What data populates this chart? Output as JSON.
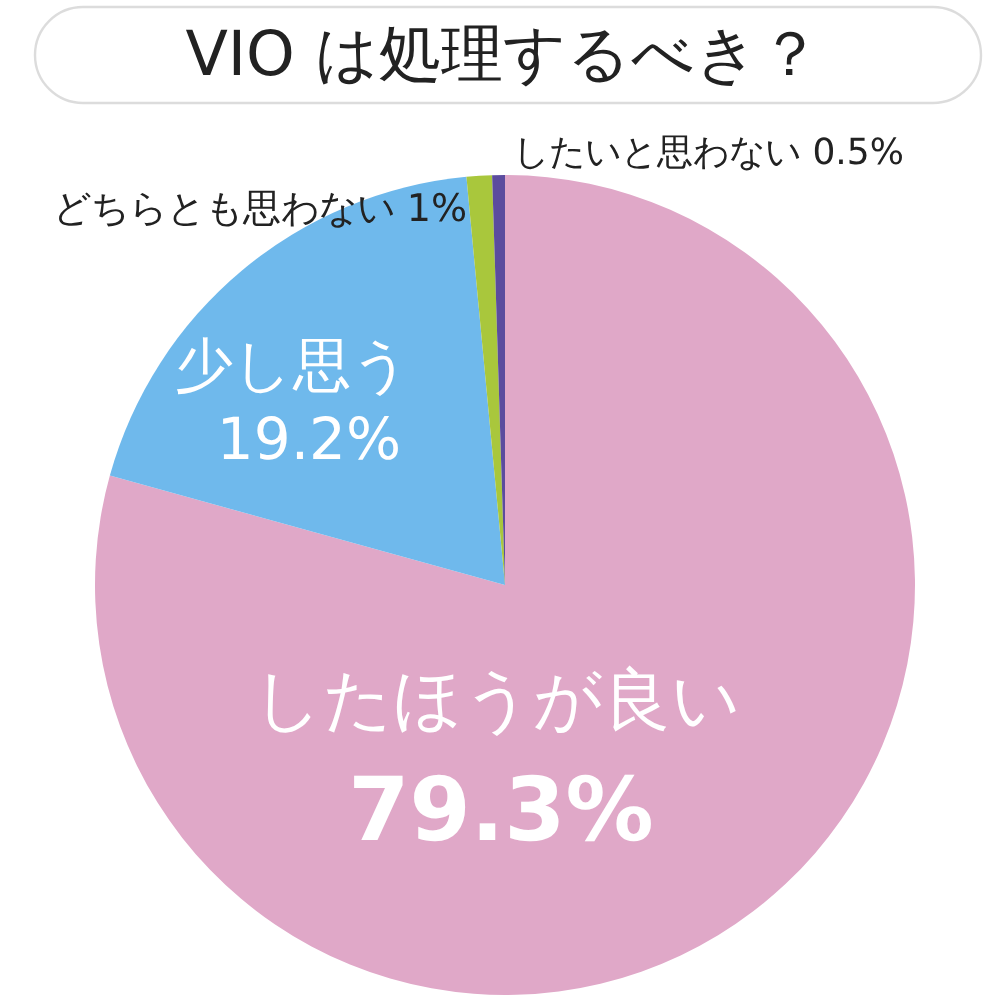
{
  "chart_data": {
    "type": "pie",
    "title": "VIO は処理するべき？",
    "categories": [
      "したほうが良い",
      "少し思う",
      "どちらとも思わない",
      "したいと思わない"
    ],
    "values": [
      79.3,
      19.2,
      1,
      0.5
    ],
    "colors": [
      "#e0a8c8",
      "#6fb9ec",
      "#a9c73c",
      "#5b4c9e"
    ],
    "value_labels": [
      "79.3%",
      "19.2%",
      "1%",
      "0.5%"
    ]
  }
}
